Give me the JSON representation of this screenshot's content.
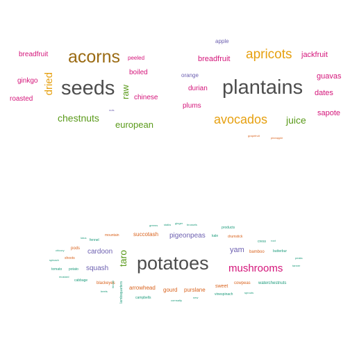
{
  "colors": {
    "dark_gray": "#4d4d4d",
    "brown": "#9a6a12",
    "gold": "#e6a010",
    "magenta": "#d4157a",
    "green": "#5a9a1a",
    "purple": "#6c5fb0",
    "orange": "#d9621c",
    "teal": "#1a9a7a"
  },
  "cloud_top_left": {
    "seeds": "seeds",
    "acorns": "acorns",
    "chestnuts": "chestnuts",
    "european": "european",
    "dried": "dried",
    "raw": "raw",
    "breadfruit": "breadfruit",
    "ginkgo": "ginkgo",
    "roasted": "roasted",
    "peeled": "peeled",
    "boiled": "boiled",
    "chinese": "chinese",
    "nuts": "nuts"
  },
  "cloud_top_right": {
    "plantains": "plantains",
    "avocados": "avocados",
    "apricots": "apricots",
    "juice": "juice",
    "breadfruit": "breadfruit",
    "jackfruit": "jackfruit",
    "guavas": "guavas",
    "dates": "dates",
    "sapote": "sapote",
    "durian": "durian",
    "plums": "plums",
    "orange": "orange",
    "apple": "apple",
    "grapefruit": "grapefruit",
    "pineapple": "pineapple"
  },
  "cloud_bottom": {
    "potatoes": "potatoes",
    "mushrooms": "mushrooms",
    "taro": "taro",
    "pigeonpeas": "pigeonpeas",
    "yam": "yam",
    "cardoon": "cardoon",
    "squash": "squash",
    "succotash": "succotash",
    "gourd": "gourd",
    "purslane": "purslane",
    "arrowhead": "arrowhead",
    "sweet": "sweet",
    "blackeyes": "blackeyes",
    "cowpeas": "cowpeas",
    "bamboo": "bamboo",
    "butterbur": "butterbur",
    "fennel": "fennel",
    "mountain": "mountain",
    "pods": "pods",
    "shoots": "shoots",
    "potato": "potato",
    "tomato": "tomato",
    "cabbage": "cabbage",
    "kale": "kale",
    "drumstick": "drumstick",
    "cress": "cress",
    "root": "root",
    "products": "products",
    "lotus": "lotus",
    "chicory": "chicory",
    "spinach": "spinach",
    "mustard": "mustard",
    "beets": "beets",
    "lambsquarters": "lambsquarters",
    "fennel2": "fennel",
    "campbells": "campbells",
    "cornsalty": "cornsalty",
    "new": "new",
    "vinespinach": "vinespinach",
    "sprouts": "sprouts",
    "watercress": "watercress",
    "tanner": "tanner",
    "peaks": "peaks",
    "greens": "greens",
    "stalks": "stalks",
    "ginger": "ginger",
    "brussels": "brussels",
    "watechestnuts": "waterchestnuts"
  }
}
